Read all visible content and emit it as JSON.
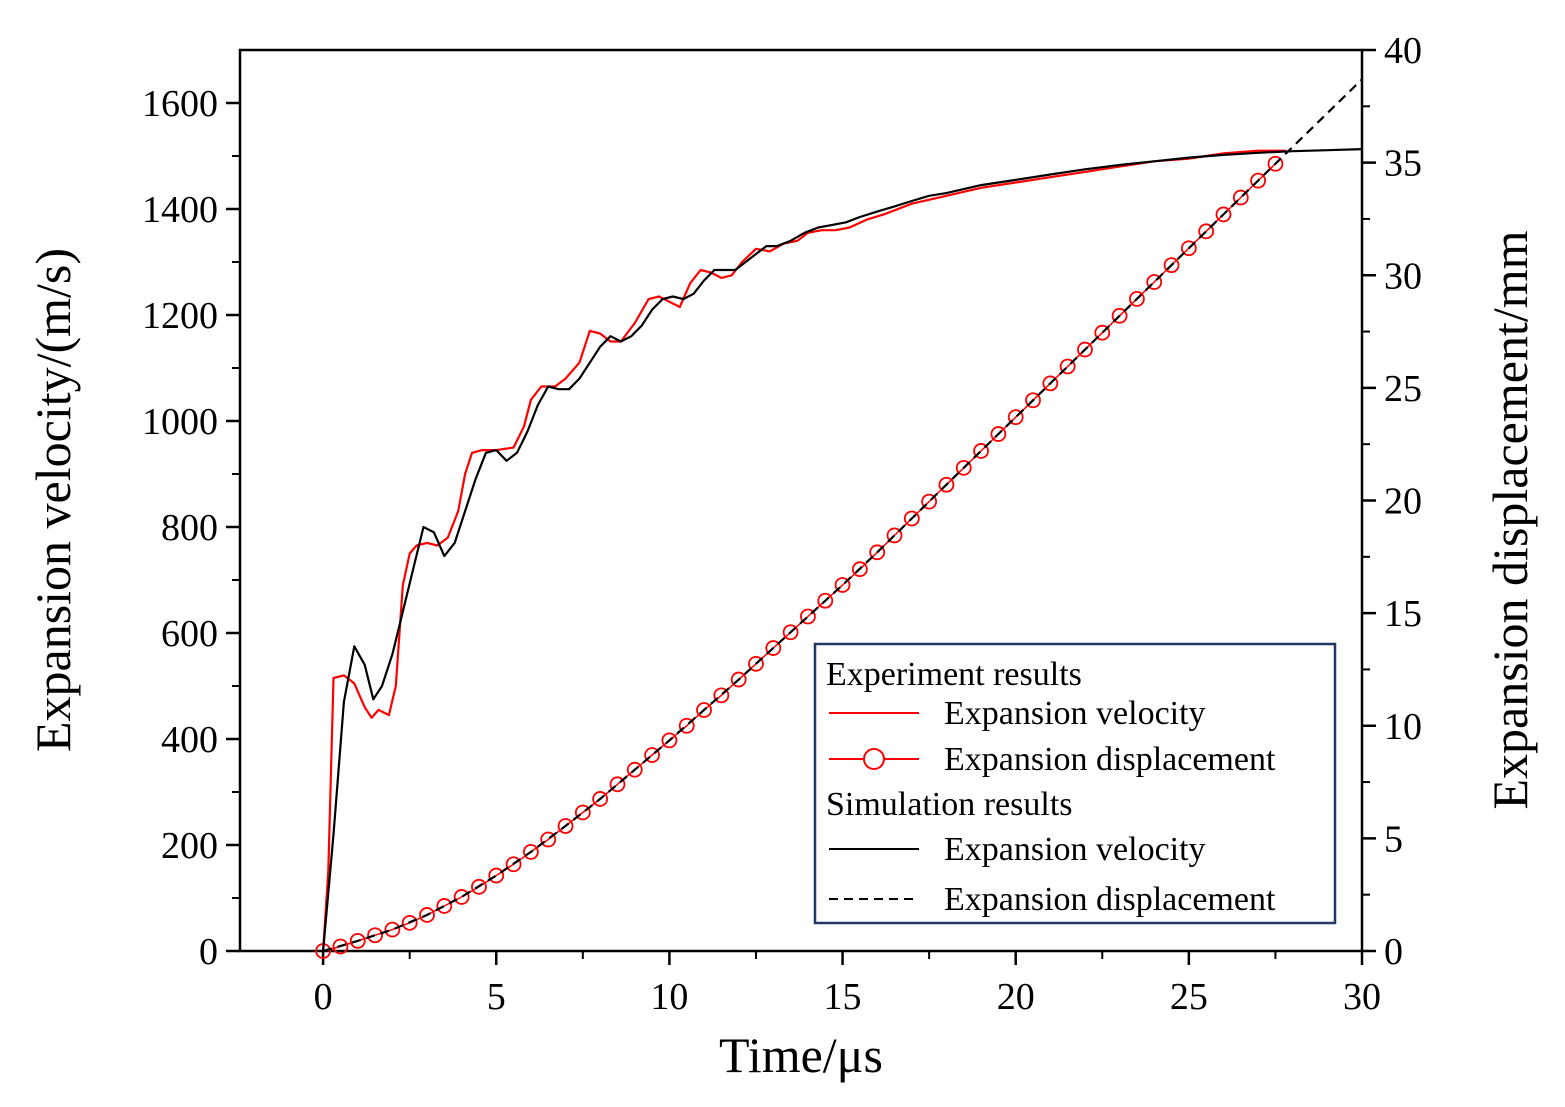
{
  "chart_data": {
    "type": "line",
    "title": "",
    "xlabel": "Time/μs",
    "ylabel_left": "Expansion velocity/(m/s)",
    "ylabel_right": "Expansion displacement/mm",
    "xlim": [
      -2.4,
      30
    ],
    "ylim_left": [
      0,
      1700
    ],
    "ylim_right": [
      0,
      40
    ],
    "x_ticks": [
      0,
      5,
      10,
      15,
      20,
      25,
      30
    ],
    "y_left_ticks": [
      0,
      200,
      400,
      600,
      800,
      1000,
      1200,
      1400,
      1600
    ],
    "y_right_ticks": [
      0,
      5,
      10,
      15,
      20,
      25,
      30,
      35,
      40
    ],
    "grid": false,
    "legend": {
      "position": "bottom-right",
      "groups": [
        {
          "heading": "Experiment results",
          "entries": [
            "Expansion velocity",
            "Expansion displacement"
          ]
        },
        {
          "heading": "Simulation results",
          "entries": [
            "Expansion velocity",
            "Expansion displacement"
          ]
        }
      ]
    },
    "series": [
      {
        "name": "Experiment results - Expansion velocity",
        "axis": "left",
        "color": "#ff0000",
        "style": "solid",
        "x": [
          0,
          0.15,
          0.3,
          0.6,
          0.9,
          1.2,
          1.4,
          1.6,
          1.9,
          2.1,
          2.3,
          2.5,
          2.7,
          3.0,
          3.3,
          3.6,
          3.9,
          4.1,
          4.3,
          4.6,
          5.0,
          5.5,
          5.8,
          6.0,
          6.3,
          6.7,
          7.0,
          7.4,
          7.7,
          8.0,
          8.3,
          8.6,
          9.0,
          9.4,
          9.7,
          10.0,
          10.3,
          10.6,
          10.9,
          11.2,
          11.5,
          11.8,
          12.1,
          12.5,
          12.9,
          13.3,
          13.7,
          14.0,
          14.4,
          14.8,
          15.2,
          15.7,
          16.2,
          17.0,
          18.0,
          19.0,
          20.0,
          21.0,
          22.0,
          23.0,
          24.0,
          25.0,
          26.0,
          27.0,
          27.8
        ],
        "y": [
          0,
          150,
          515,
          520,
          505,
          460,
          440,
          455,
          445,
          500,
          690,
          750,
          765,
          770,
          765,
          780,
          830,
          900,
          940,
          945,
          945,
          950,
          990,
          1040,
          1065,
          1065,
          1080,
          1110,
          1170,
          1165,
          1150,
          1150,
          1185,
          1230,
          1235,
          1225,
          1215,
          1260,
          1285,
          1280,
          1270,
          1275,
          1300,
          1325,
          1320,
          1335,
          1340,
          1355,
          1360,
          1360,
          1365,
          1380,
          1390,
          1410,
          1425,
          1440,
          1450,
          1460,
          1470,
          1480,
          1490,
          1495,
          1505,
          1510,
          1510
        ]
      },
      {
        "name": "Experiment results - Expansion displacement",
        "axis": "right",
        "color": "#ff0000",
        "style": "markers",
        "marker": "open-circle",
        "x": [
          0.0,
          0.5,
          1.0,
          1.5,
          2.0,
          2.5,
          3.0,
          3.5,
          4.0,
          4.5,
          5.0,
          5.5,
          6.0,
          6.5,
          7.0,
          7.5,
          8.0,
          8.5,
          9.0,
          9.5,
          10.0,
          10.5,
          11.0,
          11.5,
          12.0,
          12.5,
          13.0,
          13.5,
          14.0,
          14.5,
          15.0,
          15.5,
          16.0,
          16.5,
          17.0,
          17.5,
          18.0,
          18.5,
          19.0,
          19.5,
          20.0,
          20.5,
          21.0,
          21.5,
          22.0,
          22.5,
          23.0,
          23.5,
          24.0,
          24.5,
          25.0,
          25.5,
          26.0,
          26.5,
          27.0,
          27.5
        ],
        "y": [
          0.0,
          0.2,
          0.45,
          0.7,
          0.95,
          1.25,
          1.6,
          2.0,
          2.4,
          2.85,
          3.35,
          3.85,
          4.4,
          4.95,
          5.55,
          6.15,
          6.75,
          7.4,
          8.05,
          8.7,
          9.35,
          10.0,
          10.7,
          11.35,
          12.05,
          12.75,
          13.45,
          14.15,
          14.85,
          15.55,
          16.25,
          16.95,
          17.7,
          18.45,
          19.2,
          19.95,
          20.7,
          21.45,
          22.2,
          22.95,
          23.7,
          24.45,
          25.2,
          25.95,
          26.7,
          27.45,
          28.2,
          28.95,
          29.7,
          30.45,
          31.2,
          31.95,
          32.7,
          33.45,
          34.2,
          34.95
        ]
      },
      {
        "name": "Simulation results - Expansion velocity",
        "axis": "left",
        "color": "#000000",
        "style": "solid",
        "x": [
          0,
          0.3,
          0.6,
          0.9,
          1.2,
          1.45,
          1.7,
          2.0,
          2.3,
          2.6,
          2.9,
          3.2,
          3.5,
          3.8,
          4.1,
          4.4,
          4.7,
          5.0,
          5.3,
          5.6,
          5.9,
          6.2,
          6.5,
          6.8,
          7.1,
          7.4,
          7.7,
          8.0,
          8.3,
          8.6,
          8.9,
          9.2,
          9.5,
          9.8,
          10.1,
          10.4,
          10.7,
          11.0,
          11.3,
          11.6,
          11.9,
          12.2,
          12.5,
          12.8,
          13.1,
          13.5,
          13.9,
          14.3,
          14.7,
          15.1,
          15.5,
          16.0,
          16.5,
          17.0,
          17.5,
          18.0,
          19.0,
          20.0,
          21.0,
          22.0,
          23.0,
          24.0,
          25.0,
          26.0,
          27.0,
          28.0,
          29.0,
          30.0
        ],
        "y": [
          0,
          220,
          470,
          575,
          540,
          475,
          500,
          560,
          640,
          720,
          800,
          790,
          745,
          770,
          830,
          890,
          940,
          945,
          925,
          940,
          980,
          1030,
          1065,
          1060,
          1060,
          1080,
          1110,
          1140,
          1160,
          1150,
          1160,
          1180,
          1210,
          1230,
          1235,
          1230,
          1240,
          1265,
          1285,
          1285,
          1285,
          1300,
          1315,
          1330,
          1330,
          1340,
          1355,
          1365,
          1370,
          1375,
          1385,
          1395,
          1405,
          1415,
          1425,
          1430,
          1445,
          1455,
          1465,
          1475,
          1483,
          1490,
          1497,
          1502,
          1506,
          1509,
          1511,
          1513
        ]
      },
      {
        "name": "Simulation results - Expansion displacement",
        "axis": "right",
        "color": "#000000",
        "style": "dashed",
        "x": [
          0,
          1,
          2,
          3,
          4,
          5,
          6,
          7,
          8,
          9,
          10,
          11,
          12,
          13,
          14,
          15,
          16,
          17,
          18,
          19,
          20,
          21,
          22,
          23,
          24,
          25,
          26,
          27,
          28,
          29,
          30
        ],
        "y": [
          0,
          0.45,
          0.95,
          1.6,
          2.4,
          3.35,
          4.4,
          5.55,
          6.75,
          8.05,
          9.35,
          10.7,
          12.05,
          13.45,
          14.85,
          16.25,
          17.7,
          19.2,
          20.7,
          22.2,
          23.7,
          25.2,
          26.7,
          28.2,
          29.7,
          31.2,
          32.7,
          34.2,
          35.7,
          37.2,
          38.7
        ]
      }
    ]
  }
}
